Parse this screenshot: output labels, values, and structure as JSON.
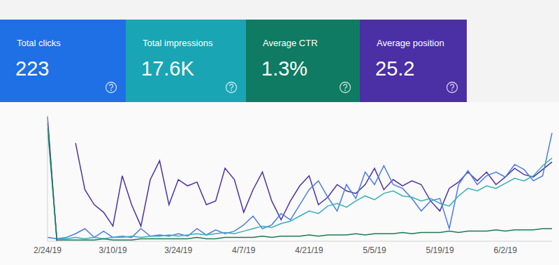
{
  "cards": [
    {
      "label": "Total clicks",
      "value": "223",
      "color": "#1f6fe5"
    },
    {
      "label": "Total impressions",
      "value": "17.6K",
      "color": "#1aa5b4"
    },
    {
      "label": "Average CTR",
      "value": "1.3%",
      "color": "#0f7b62"
    },
    {
      "label": "Average position",
      "value": "25.2",
      "color": "#4a2fa5"
    }
  ],
  "chart_data": {
    "type": "line",
    "categories": [
      "2/24/19",
      null,
      null,
      null,
      null,
      null,
      null,
      "3/10/19",
      null,
      null,
      null,
      null,
      null,
      null,
      "3/24/19",
      null,
      null,
      null,
      null,
      null,
      null,
      "4/7/19",
      null,
      null,
      null,
      null,
      null,
      null,
      "4/21/19",
      null,
      null,
      null,
      null,
      null,
      null,
      "5/5/19",
      null,
      null,
      null,
      null,
      null,
      null,
      "5/19/19",
      null,
      null,
      null,
      null,
      null,
      null,
      "6/2/19",
      null,
      null,
      null,
      null,
      null
    ],
    "series": [
      {
        "name": "Average position",
        "color": "#4b32a8",
        "values": [
          99,
          0,
          null,
          78,
          41,
          29,
          23,
          12,
          52,
          29,
          12,
          49,
          64,
          29,
          49,
          44,
          47,
          29,
          32,
          58,
          49,
          23,
          41,
          55,
          32,
          17,
          32,
          44,
          52,
          29,
          35,
          45,
          40,
          38,
          45,
          58,
          41,
          49,
          44,
          48,
          45,
          32,
          24,
          42,
          47,
          55,
          48,
          55,
          45,
          51,
          58,
          53,
          51,
          57,
          63
        ]
      },
      {
        "name": "Total clicks",
        "color": "#4a7de8",
        "values": [
          3,
          2,
          3,
          6,
          10,
          3,
          8,
          3,
          4,
          3,
          10,
          4,
          5,
          4,
          6,
          4,
          10,
          5,
          9,
          6,
          8,
          13,
          20,
          10,
          13,
          22,
          17,
          29,
          41,
          48,
          35,
          24,
          45,
          34,
          55,
          45,
          60,
          45,
          42,
          34,
          24,
          32,
          34,
          10,
          45,
          56,
          45,
          52,
          55,
          51,
          61,
          57,
          48,
          52,
          86
        ]
      },
      {
        "name": "Total impressions",
        "color": "#35b0b8",
        "values": [
          90,
          2,
          2,
          3,
          2,
          3,
          2,
          3,
          3,
          4,
          3,
          4,
          4,
          5,
          4,
          5,
          6,
          5,
          6,
          7,
          6,
          8,
          10,
          12,
          11,
          14,
          16,
          20,
          24,
          22,
          28,
          30,
          27,
          32,
          36,
          33,
          38,
          40,
          36,
          35,
          32,
          34,
          30,
          28,
          36,
          42,
          40,
          44,
          42,
          46,
          50,
          48,
          52,
          60,
          66
        ]
      },
      {
        "name": "Average CTR",
        "color": "#1e7a55",
        "values": [
          94,
          1,
          1,
          1,
          1,
          1,
          2,
          1,
          1,
          1,
          2,
          2,
          2,
          2,
          2,
          2,
          3,
          2,
          2,
          3,
          3,
          3,
          3,
          4,
          3,
          4,
          4,
          4,
          5,
          4,
          5,
          5,
          5,
          6,
          5,
          6,
          6,
          6,
          7,
          6,
          7,
          7,
          7,
          8,
          7,
          8,
          8,
          8,
          9,
          8,
          9,
          9,
          9,
          10,
          10
        ]
      }
    ],
    "ylim": [
      0,
      100
    ],
    "grid": false,
    "tick_labels": "x"
  }
}
